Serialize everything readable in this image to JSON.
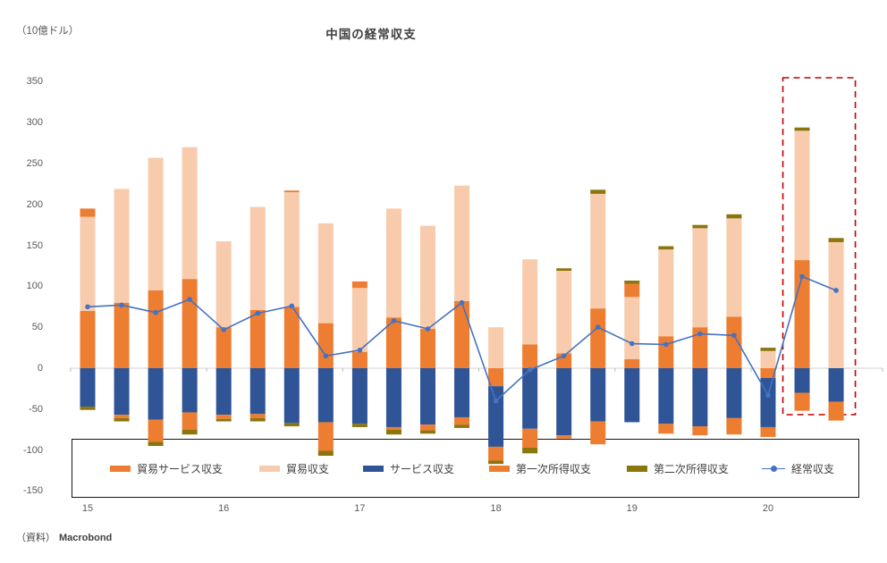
{
  "title": "中国の経常収支",
  "unit_label": "（10億ドル）",
  "source": {
    "prefix": "（資料）",
    "name": "Macrobond"
  },
  "chart_data": {
    "type": "bar",
    "subtype": "stacked-bars-with-line-overlay",
    "title": "中国の経常収支",
    "unit": "10億ドル",
    "ylim": [
      -150,
      350
    ],
    "y_ticks": [
      350,
      300,
      250,
      200,
      150,
      100,
      50,
      0,
      -50,
      -100,
      -150
    ],
    "x_year_labels": [
      "15",
      "16",
      "17",
      "18",
      "19",
      "20"
    ],
    "grid": false,
    "legend_position": "bottom-boxed",
    "categories": [
      "2015Q1",
      "2015Q2",
      "2015Q3",
      "2015Q4",
      "2016Q1",
      "2016Q2",
      "2016Q3",
      "2016Q4",
      "2017Q1",
      "2017Q2",
      "2017Q3",
      "2017Q4",
      "2018Q1",
      "2018Q2",
      "2018Q3",
      "2018Q4",
      "2019Q1",
      "2019Q2",
      "2019Q3",
      "2019Q4",
      "2020Q1",
      "2020Q2",
      "2020Q3"
    ],
    "series": [
      {
        "name": "貿易サービス収支",
        "type": "bar",
        "color": "#ED7D31",
        "values": [
          70,
          80,
          95,
          109,
          50,
          71,
          75,
          55,
          20,
          62,
          48,
          82,
          -22,
          29,
          18,
          73,
          11,
          39,
          50,
          63,
          -12,
          132,
          0
        ]
      },
      {
        "name": "貿易収支",
        "type": "bar",
        "color": "#F8CBAD",
        "values": [
          115,
          139,
          162,
          161,
          105,
          126,
          140,
          122,
          78,
          133,
          126,
          141,
          50,
          104,
          101,
          140,
          76,
          106,
          121,
          120,
          21,
          158,
          154
        ]
      },
      {
        "name": "サービス収支",
        "type": "bar",
        "color": "#2F5597",
        "values": [
          -47,
          -57,
          -63,
          -54,
          -57,
          -56,
          -67,
          -66,
          -68,
          -72,
          -69,
          -60,
          -74,
          -74,
          -82,
          -65,
          -66,
          -68,
          -71,
          -61,
          -60,
          -30,
          -41
        ]
      },
      {
        "name": "第一次所得収支",
        "type": "bar",
        "color": "#ED7D31",
        "values": [
          10,
          -4,
          -27,
          -21,
          -5,
          -5,
          2,
          -35,
          8,
          -3,
          -7,
          -9,
          -17,
          -23,
          -4,
          -28,
          16,
          -12,
          -11,
          -20,
          -12,
          -22,
          -23
        ]
      },
      {
        "name": "第二次所得収支",
        "type": "bar",
        "color": "#8B750D",
        "values": [
          -4,
          -4,
          -5,
          -6,
          -3,
          -4,
          -4,
          -6,
          -4,
          -6,
          -4,
          -4,
          -4,
          -7,
          3,
          5,
          4,
          4,
          4,
          5,
          4,
          4,
          5
        ]
      },
      {
        "name": "経常収支",
        "type": "line",
        "color": "#4472C4",
        "values": [
          75,
          77,
          68,
          84,
          47,
          67,
          76,
          15,
          22,
          58,
          48,
          80,
          -40,
          -2,
          15,
          50,
          30,
          29,
          42,
          40,
          -33,
          112,
          95
        ]
      }
    ],
    "highlight_box": {
      "from_category": "2020Q2",
      "to_category": "2020Q3",
      "color": "#C00000",
      "style": "dashed"
    }
  }
}
